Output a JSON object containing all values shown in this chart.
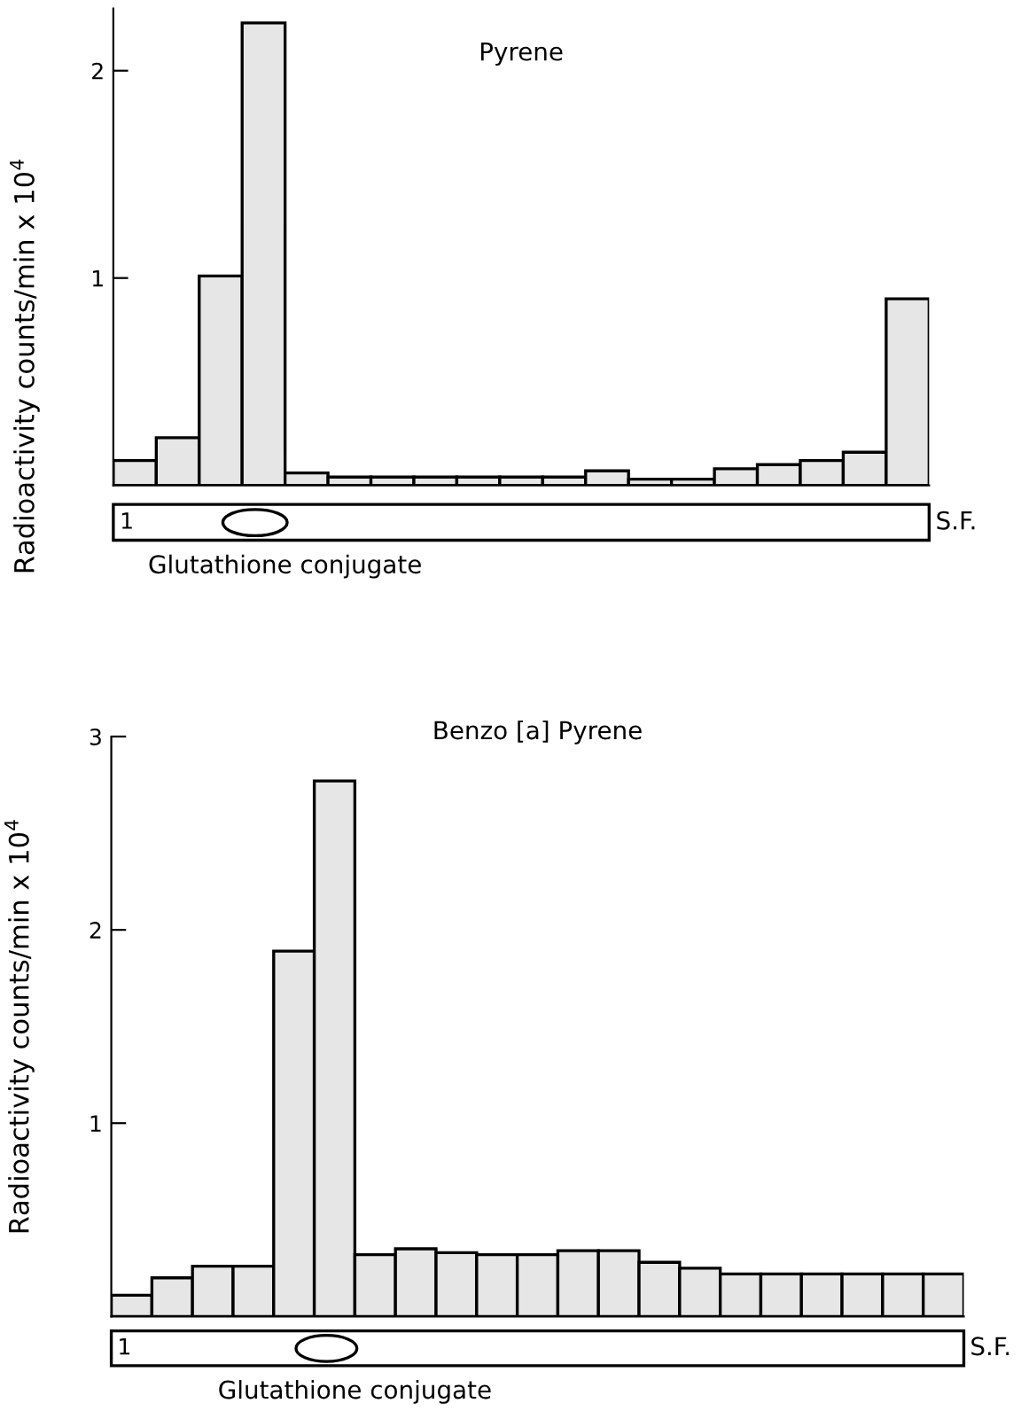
{
  "chart_data": [
    {
      "type": "bar",
      "title": "Pyrene",
      "ylabel": "Radioactivity counts/min x 10$^{4}$",
      "categories": [
        null,
        null,
        null,
        null,
        null,
        null,
        null,
        null,
        null,
        null,
        null,
        null,
        null,
        null,
        null,
        null,
        null,
        null,
        null
      ],
      "values": [
        0.12,
        0.23,
        1.01,
        2.23,
        0.06,
        0.04,
        0.04,
        0.04,
        0.04,
        0.04,
        0.04,
        0.07,
        0.03,
        0.03,
        0.08,
        0.1,
        0.12,
        0.16,
        0.9
      ],
      "color": "#e6e6e6",
      "ylim": [
        0,
        2.3
      ],
      "yticks": [
        1,
        2
      ],
      "grid": false,
      "annotations": [
        "1",
        "S.F.",
        "Glutathione conjugate"
      ]
    },
    {
      "type": "bar",
      "title": "Benzo [a] Pyrene",
      "ylabel": "Radioactivity counts/min x 10$^{4}$",
      "categories": [
        null,
        null,
        null,
        null,
        null,
        null,
        null,
        null,
        null,
        null,
        null,
        null,
        null,
        null,
        null,
        null,
        null,
        null,
        null,
        null,
        null
      ],
      "values": [
        0.11,
        0.2,
        0.26,
        0.26,
        1.89,
        2.77,
        0.32,
        0.35,
        0.33,
        0.32,
        0.32,
        0.34,
        0.34,
        0.28,
        0.25,
        0.22,
        0.22,
        0.22,
        0.22,
        0.22,
        0.22
      ],
      "color": "#e6e6e6",
      "ylim": [
        0,
        3
      ],
      "yticks": [
        1,
        2,
        3
      ],
      "grid": false,
      "annotations": [
        "1",
        "S.F.",
        "Glutathione conjugate"
      ]
    }
  ]
}
